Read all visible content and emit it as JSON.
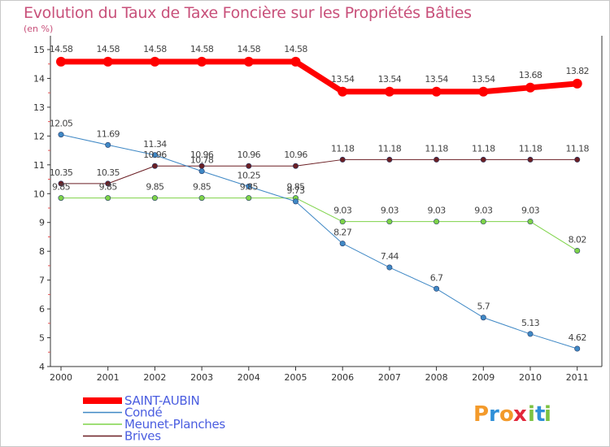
{
  "chart_data": {
    "type": "line",
    "title": "Evolution du Taux de Taxe Foncière sur les Propriétés Bâties",
    "subtitle": "(en %)",
    "x": [
      "2000",
      "2001",
      "2002",
      "2003",
      "2004",
      "2005",
      "2006",
      "2007",
      "2008",
      "2009",
      "2010",
      "2011"
    ],
    "ylim": [
      4,
      15
    ],
    "yticks": [
      4,
      5,
      6,
      7,
      8,
      9,
      10,
      11,
      12,
      13,
      14,
      15
    ],
    "grid": false,
    "legend_position": "bottom-left",
    "series": [
      {
        "name": "SAINT-AUBIN",
        "color": "#ff0000",
        "values": [
          14.58,
          14.58,
          14.58,
          14.58,
          14.58,
          14.58,
          13.54,
          13.54,
          13.54,
          13.54,
          13.68,
          13.82
        ],
        "labels": [
          "14.58",
          "14.58",
          "14.58",
          "14.58",
          "14.58",
          "14.58",
          "13.54",
          "13.54",
          "13.54",
          "13.54",
          "13.68",
          "13.82"
        ]
      },
      {
        "name": "Condé",
        "color": "#3f88c5",
        "values": [
          12.05,
          11.69,
          11.34,
          10.78,
          10.25,
          9.73,
          8.27,
          7.44,
          6.7,
          5.7,
          5.13,
          4.62
        ],
        "labels": [
          "12.05",
          "11.69",
          "11.34",
          "10.78",
          "10.25",
          "9.73",
          "8.27",
          "7.44",
          "6.7",
          "5.7",
          "5.13",
          "4.62"
        ]
      },
      {
        "name": "Meunet-Planches",
        "color": "#7ed348",
        "values": [
          9.85,
          9.85,
          9.85,
          9.85,
          9.85,
          9.85,
          9.03,
          9.03,
          9.03,
          9.03,
          9.03,
          8.02
        ],
        "labels": [
          "9.85",
          "9.85",
          "9.85",
          "9.85",
          "9.85",
          "9.85",
          "9.03",
          "9.03",
          "9.03",
          "9.03",
          "9.03",
          "8.02"
        ]
      },
      {
        "name": "Brives",
        "color": "#6b1f24",
        "values": [
          10.35,
          10.35,
          10.96,
          10.96,
          10.96,
          10.96,
          11.18,
          11.18,
          11.18,
          11.18,
          11.18,
          11.18
        ],
        "labels": [
          "10.35",
          "10.35",
          "10.96",
          "10.96",
          "10.96",
          "10.96",
          "11.18",
          "11.18",
          "11.18",
          "11.18",
          "11.18",
          "11.18"
        ]
      }
    ]
  },
  "logo": {
    "text": "Proxiti",
    "letters": [
      "P",
      "r",
      "o",
      "x",
      "i",
      "t",
      "i"
    ],
    "colors": [
      "#f39a2b",
      "#2e8fd8",
      "#f39a2b",
      "#e2283b",
      "#7cc242",
      "#2e8fd8",
      "#7cc242"
    ]
  }
}
